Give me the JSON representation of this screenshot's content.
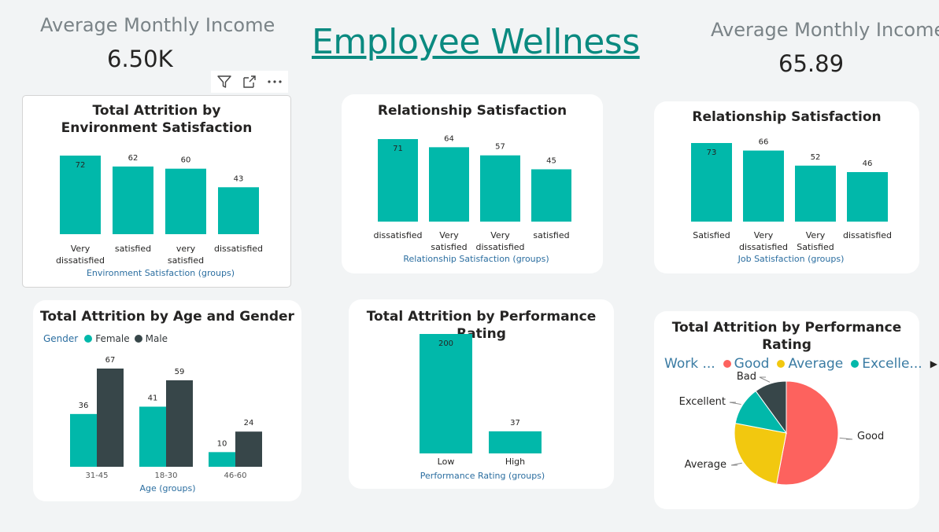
{
  "header": {
    "title": "Employee Wellness",
    "kpi_left": {
      "label": "Average Monthly Income",
      "value": "6.50K"
    },
    "kpi_right": {
      "label": "Average Monthly Income",
      "value": "65.89"
    }
  },
  "colors": {
    "teal": "#01b8aa",
    "dark": "#374649",
    "red": "#fd625e",
    "yellow": "#f2c80f",
    "axis_title": "#2b6ea0"
  },
  "toolbar": {
    "icons": [
      "filter-icon",
      "focus-mode-icon",
      "more-options-icon"
    ]
  },
  "chart_data": [
    {
      "id": "env",
      "type": "bar",
      "title": "Total Attrition by Environment Satisfaction",
      "categories": [
        "Very dissatisfied",
        "satisfied",
        "very satisfied",
        "dissatisfied"
      ],
      "values": [
        72,
        62,
        60,
        43
      ],
      "xlabel": "Environment Satisfaction (groups)",
      "ylim": [
        0,
        72
      ]
    },
    {
      "id": "rel",
      "type": "bar",
      "title": "Relationship Satisfaction",
      "categories": [
        "dissatisfied",
        "Very satisfied",
        "Very dissatisfied",
        "satisfied"
      ],
      "values": [
        71,
        64,
        57,
        45
      ],
      "xlabel": "Relationship Satisfaction (groups)",
      "ylim": [
        0,
        71
      ]
    },
    {
      "id": "job",
      "type": "bar",
      "title": "Relationship Satisfaction",
      "categories": [
        "Satisfied",
        "Very dissatisfied",
        "Very Satisfied",
        "dissatisfied"
      ],
      "values": [
        73,
        66,
        52,
        46
      ],
      "xlabel": "Job Satisfaction (groups)",
      "ylim": [
        0,
        73
      ]
    },
    {
      "id": "age",
      "type": "bar",
      "title": "Total Attrition by Age and Gender",
      "legend_title": "Gender",
      "categories": [
        "31-45",
        "18-30",
        "46-60"
      ],
      "series": [
        {
          "name": "Female",
          "values": [
            36,
            41,
            10
          ]
        },
        {
          "name": "Male",
          "values": [
            67,
            59,
            24
          ]
        }
      ],
      "xlabel": "Age (groups)",
      "ylim": [
        0,
        67
      ]
    },
    {
      "id": "perf",
      "type": "bar",
      "title": "Total Attrition by Performance Rating",
      "categories": [
        "Low",
        "High"
      ],
      "values": [
        200,
        37
      ],
      "xlabel": "Performance Rating (groups)",
      "ylim": [
        0,
        200
      ]
    },
    {
      "id": "pie",
      "type": "pie",
      "title": "Total Attrition by Performance Rating",
      "legend_title": "Work ...",
      "legend_items": [
        "Good",
        "Average",
        "Excelle..."
      ],
      "slices": [
        {
          "name": "Good",
          "value": 53
        },
        {
          "name": "Average",
          "value": 25
        },
        {
          "name": "Excellent",
          "value": 12
        },
        {
          "name": "Bad",
          "value": 10
        }
      ]
    }
  ]
}
